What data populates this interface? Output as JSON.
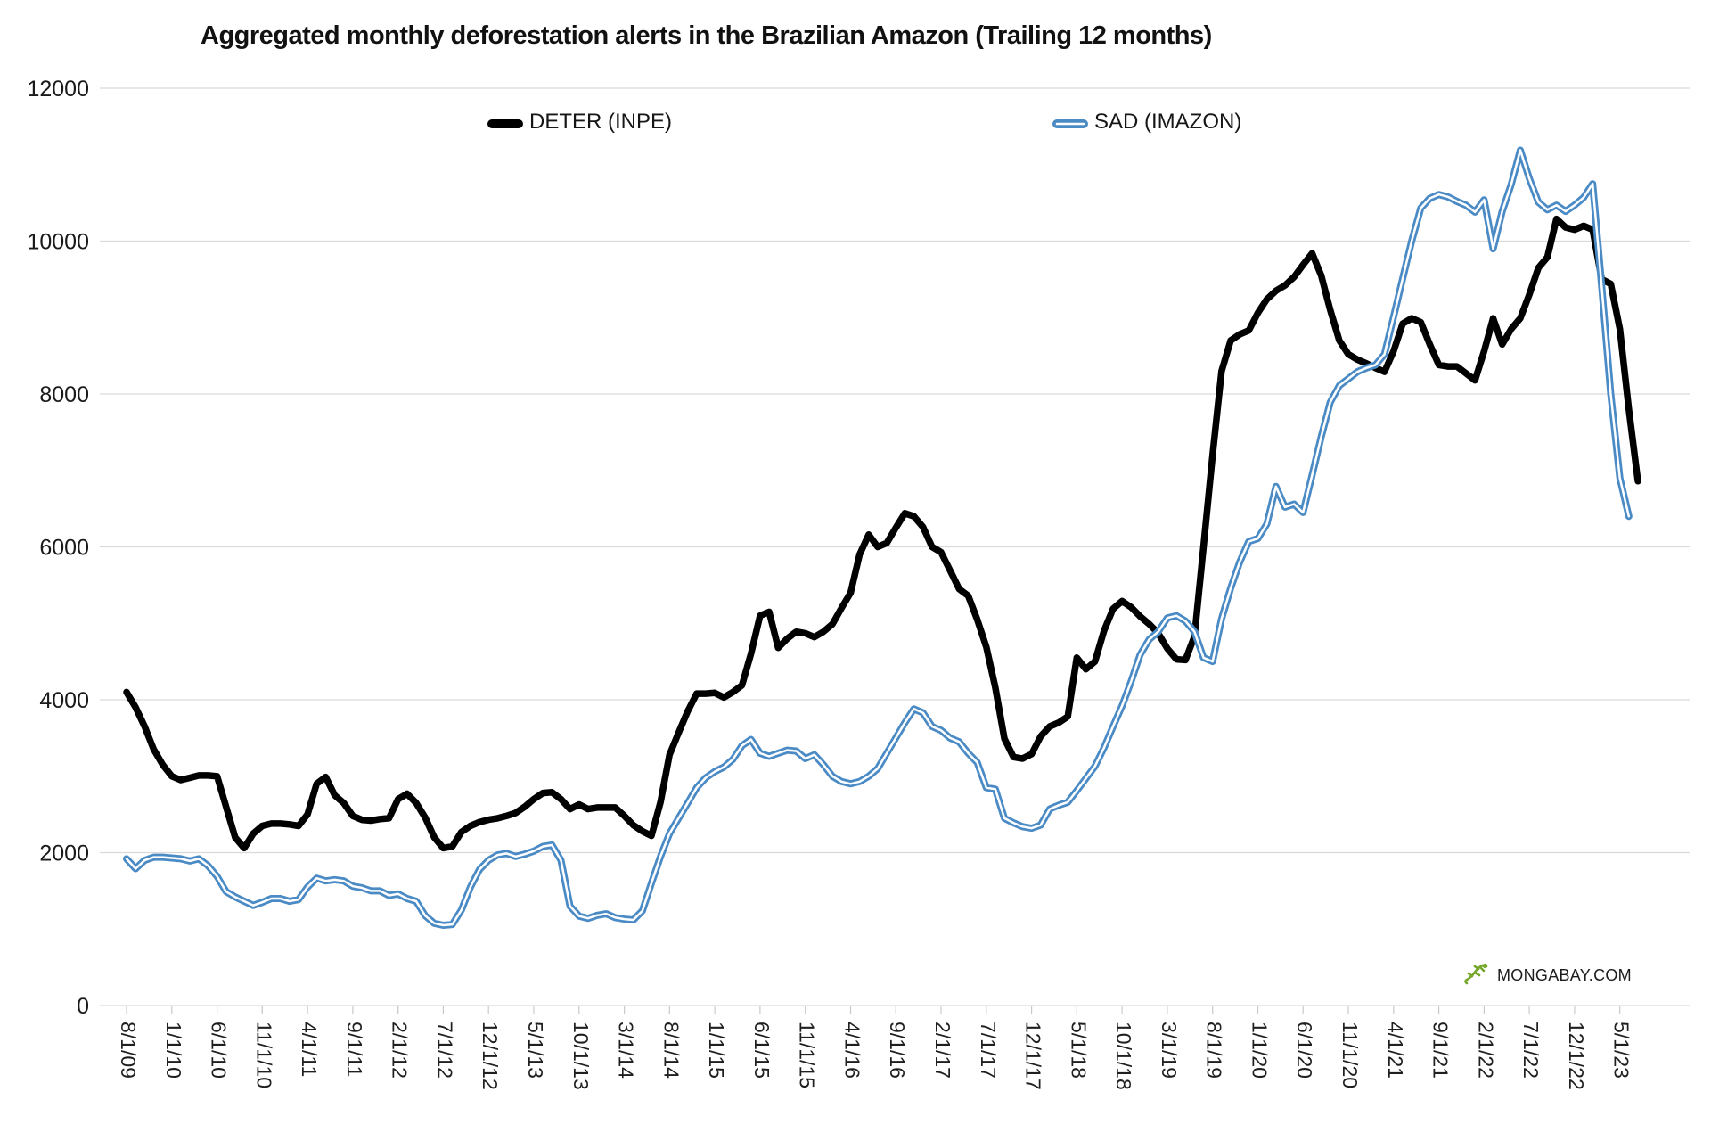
{
  "title": "Aggregated monthly deforestation alerts in the Brazilian Amazon (Trailing 12 months)",
  "watermark": "MONGABAY.COM",
  "watermark_icon": "gecko-icon",
  "colors": {
    "deter": "#000000",
    "sad_outer": "#4a8ac5",
    "sad_core": "#ffffff",
    "grid": "#d9d9d9",
    "text": "#1a1a1a"
  },
  "chart_data": {
    "type": "line",
    "title": "Aggregated monthly deforestation alerts in the Brazilian Amazon (Trailing 12 months)",
    "xlabel": "",
    "ylabel": "",
    "ylim": [
      0,
      12000
    ],
    "y_ticks": [
      0,
      2000,
      4000,
      6000,
      8000,
      10000,
      12000
    ],
    "grid": "horizontal",
    "legend_position": "top",
    "x_tick_interval_months": 5,
    "x_tick_labels": [
      "8/1/09",
      "1/1/10",
      "6/1/10",
      "11/1/10",
      "4/1/11",
      "9/1/11",
      "2/1/12",
      "7/1/12",
      "12/1/12",
      "5/1/13",
      "10/1/13",
      "3/1/14",
      "8/1/14",
      "1/1/15",
      "6/1/15",
      "11/1/15",
      "4/1/16",
      "9/1/16",
      "2/1/17",
      "7/1/17",
      "12/1/17",
      "5/1/18",
      "10/1/18",
      "3/1/19",
      "8/1/19",
      "1/1/20",
      "6/1/20",
      "11/1/20",
      "4/1/21",
      "9/1/21",
      "2/1/22",
      "7/1/22",
      "12/1/22",
      "5/1/23"
    ],
    "series": [
      {
        "name": "DETER (INPE)",
        "color": "#000000",
        "style": "solid",
        "start_month": "2009-08",
        "values": [
          4100,
          3900,
          3650,
          3350,
          3150,
          3000,
          2950,
          2980,
          3010,
          3010,
          3000,
          2600,
          2200,
          2060,
          2250,
          2350,
          2380,
          2380,
          2370,
          2350,
          2500,
          2900,
          2990,
          2750,
          2650,
          2480,
          2430,
          2420,
          2440,
          2450,
          2700,
          2770,
          2650,
          2460,
          2200,
          2060,
          2080,
          2270,
          2350,
          2400,
          2430,
          2450,
          2480,
          2520,
          2600,
          2700,
          2780,
          2790,
          2700,
          2570,
          2630,
          2570,
          2590,
          2590,
          2590,
          2480,
          2360,
          2280,
          2220,
          2660,
          3280,
          3570,
          3850,
          4080,
          4080,
          4090,
          4030,
          4100,
          4190,
          4600,
          5100,
          5150,
          4680,
          4800,
          4890,
          4870,
          4820,
          4890,
          4990,
          5200,
          5400,
          5900,
          6160,
          6000,
          6050,
          6250,
          6440,
          6400,
          6260,
          6000,
          5930,
          5690,
          5450,
          5360,
          5050,
          4690,
          4160,
          3490,
          3250,
          3230,
          3290,
          3520,
          3650,
          3700,
          3780,
          4550,
          4400,
          4500,
          4900,
          5190,
          5290,
          5210,
          5090,
          4990,
          4870,
          4670,
          4530,
          4520,
          4830,
          6000,
          7200,
          8300,
          8700,
          8780,
          8830,
          9060,
          9240,
          9350,
          9420,
          9530,
          9690,
          9840,
          9550,
          9100,
          8700,
          8520,
          8450,
          8400,
          8340,
          8290,
          8560,
          8920,
          8990,
          8940,
          8650,
          8380,
          8360,
          8360,
          8270,
          8180,
          8560,
          8990,
          8650,
          8850,
          8990,
          9300,
          9650,
          9790,
          10290,
          10180,
          10150,
          10200,
          10150,
          9500,
          9440,
          8850,
          7800,
          6860
        ]
      },
      {
        "name": "SAD (IMAZON)",
        "color": "#4a8ac5",
        "style": "double-outline",
        "start_month": "2009-08",
        "values": [
          1920,
          1790,
          1900,
          1940,
          1940,
          1930,
          1920,
          1890,
          1920,
          1830,
          1690,
          1490,
          1420,
          1365,
          1310,
          1350,
          1400,
          1400,
          1365,
          1385,
          1550,
          1665,
          1630,
          1645,
          1630,
          1560,
          1540,
          1500,
          1500,
          1440,
          1460,
          1400,
          1365,
          1175,
          1075,
          1050,
          1060,
          1250,
          1550,
          1780,
          1900,
          1970,
          1990,
          1950,
          1980,
          2020,
          2080,
          2100,
          1900,
          1300,
          1170,
          1140,
          1180,
          1200,
          1150,
          1130,
          1120,
          1240,
          1600,
          1950,
          2250,
          2450,
          2650,
          2850,
          2980,
          3060,
          3120,
          3220,
          3400,
          3480,
          3300,
          3260,
          3300,
          3340,
          3330,
          3230,
          3280,
          3150,
          3000,
          2930,
          2900,
          2930,
          3000,
          3100,
          3300,
          3500,
          3700,
          3880,
          3830,
          3650,
          3600,
          3500,
          3450,
          3300,
          3180,
          2850,
          2830,
          2450,
          2390,
          2340,
          2320,
          2360,
          2570,
          2620,
          2660,
          2810,
          2970,
          3130,
          3370,
          3650,
          3920,
          4240,
          4590,
          4790,
          4890,
          5070,
          5100,
          5030,
          4890,
          4550,
          4500,
          5060,
          5460,
          5800,
          6070,
          6110,
          6300,
          6790,
          6520,
          6560,
          6450,
          6940,
          7440,
          7890,
          8110,
          8200,
          8290,
          8340,
          8380,
          8520,
          9010,
          9510,
          10000,
          10430,
          10560,
          10610,
          10580,
          10520,
          10470,
          10380,
          10540,
          9900,
          10390,
          10740,
          11190,
          10820,
          10510,
          10410,
          10470,
          10390,
          10470,
          10570,
          10750,
          9400,
          8000,
          6900,
          6400
        ]
      }
    ]
  }
}
